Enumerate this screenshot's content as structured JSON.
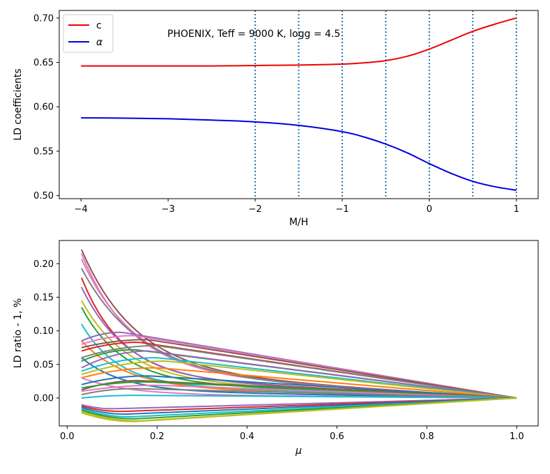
{
  "chart_data": [
    {
      "type": "line",
      "annotation": "PHOENIX, Teff = 9000 K, logg = 4.5",
      "xlabel": "M/H",
      "ylabel": "LD coefficients",
      "xlim": [
        -4.25,
        1.25
      ],
      "ylim": [
        0.4965,
        0.7085
      ],
      "xticks": [
        -4,
        -3,
        -2,
        -1,
        0,
        1
      ],
      "xtick_labels": [
        "−4",
        "−3",
        "−2",
        "−1",
        "0",
        "1"
      ],
      "yticks": [
        0.5,
        0.55,
        0.6,
        0.65,
        0.7
      ],
      "ytick_labels": [
        "0.50",
        "0.55",
        "0.60",
        "0.65",
        "0.70"
      ],
      "vlines": [
        -2.0,
        -1.5,
        -1.0,
        -0.5,
        0.0,
        0.5,
        1.0
      ],
      "vline_color": "#1f77b4",
      "legend_position": "upper-left",
      "series": [
        {
          "name": "c",
          "color": "#ee0000",
          "x": [
            -4,
            -3.5,
            -3,
            -2.5,
            -2,
            -1.5,
            -1,
            -0.75,
            -0.5,
            -0.25,
            0,
            0.25,
            0.5,
            0.75,
            1
          ],
          "y": [
            0.646,
            0.646,
            0.646,
            0.646,
            0.6465,
            0.647,
            0.648,
            0.6495,
            0.652,
            0.657,
            0.665,
            0.675,
            0.685,
            0.693,
            0.7
          ]
        },
        {
          "name": "α",
          "color": "#0000dd",
          "x": [
            -4,
            -3.5,
            -3,
            -2.5,
            -2,
            -1.5,
            -1,
            -0.75,
            -0.5,
            -0.25,
            0,
            0.25,
            0.5,
            0.75,
            1
          ],
          "y": [
            0.5875,
            0.5872,
            0.5865,
            0.585,
            0.583,
            0.579,
            0.572,
            0.566,
            0.558,
            0.548,
            0.536,
            0.525,
            0.516,
            0.51,
            0.506
          ]
        }
      ]
    },
    {
      "type": "line",
      "xlabel": "μ",
      "ylabel": "LD ratio - 1, %",
      "xlim": [
        -0.0175,
        1.0475
      ],
      "ylim": [
        -0.0415,
        0.2345
      ],
      "xticks": [
        0.0,
        0.2,
        0.4,
        0.6,
        0.8,
        1.0
      ],
      "xtick_labels": [
        "0.0",
        "0.2",
        "0.4",
        "0.6",
        "0.8",
        "1.0"
      ],
      "yticks": [
        0.0,
        0.05,
        0.1,
        0.15,
        0.2
      ],
      "ytick_labels": [
        "0.00",
        "0.05",
        "0.10",
        "0.15",
        "0.20"
      ],
      "x_start": 0.032,
      "x_end": 1.0,
      "series_shape": "curves; decaying curves use decay, humped curves use peak_mu",
      "series": [
        {
          "start": 0.221,
          "decay": 0.12,
          "color": "#8c564b"
        },
        {
          "start": 0.215,
          "decay": 0.11,
          "color": "#e377c2"
        },
        {
          "start": 0.207,
          "decay": 0.12,
          "color": "#e377c2"
        },
        {
          "start": 0.193,
          "decay": 0.13,
          "color": "#7f7f7f"
        },
        {
          "start": 0.179,
          "decay": 0.09,
          "color": "#d62728"
        },
        {
          "start": 0.165,
          "decay": 0.1,
          "color": "#9467bd"
        },
        {
          "start": 0.145,
          "decay": 0.1,
          "color": "#bcbd22"
        },
        {
          "start": 0.135,
          "decay": 0.09,
          "color": "#2ca02c"
        },
        {
          "start": 0.11,
          "decay": 0.08,
          "color": "#17becf"
        },
        {
          "start": 0.085,
          "decay": 0.1,
          "color": "#ff7f0e"
        },
        {
          "start": 0.06,
          "decay": 0.09,
          "color": "#1f77b4"
        },
        {
          "start": 0.03,
          "decay": 0.1,
          "color": "#e377c2"
        },
        {
          "start": 0.085,
          "peak": 0.098,
          "peak_mu": 0.12,
          "color": "#9467bd"
        },
        {
          "start": 0.08,
          "peak": 0.093,
          "peak_mu": 0.15,
          "color": "#e377c2"
        },
        {
          "start": 0.075,
          "peak": 0.087,
          "peak_mu": 0.18,
          "color": "#8c564b"
        },
        {
          "start": 0.07,
          "peak": 0.083,
          "peak_mu": 0.16,
          "color": "#d62728"
        },
        {
          "start": 0.06,
          "peak": 0.078,
          "peak_mu": 0.2,
          "color": "#7f7f7f"
        },
        {
          "start": 0.055,
          "peak": 0.072,
          "peak_mu": 0.15,
          "color": "#2ca02c"
        },
        {
          "start": 0.045,
          "peak": 0.07,
          "peak_mu": 0.18,
          "color": "#9467bd"
        },
        {
          "start": 0.04,
          "peak": 0.06,
          "peak_mu": 0.2,
          "color": "#17becf"
        },
        {
          "start": 0.035,
          "peak": 0.055,
          "peak_mu": 0.22,
          "color": "#bcbd22"
        },
        {
          "start": 0.03,
          "peak": 0.045,
          "peak_mu": 0.2,
          "color": "#ff7f0e"
        },
        {
          "start": 0.02,
          "peak": 0.033,
          "peak_mu": 0.18,
          "color": "#1f77b4"
        },
        {
          "start": 0.012,
          "peak": 0.026,
          "peak_mu": 0.16,
          "color": "#8c564b"
        },
        {
          "start": 0.015,
          "peak": 0.024,
          "peak_mu": 0.18,
          "color": "#2ca02c"
        },
        {
          "start": 0.01,
          "peak": 0.019,
          "peak_mu": 0.2,
          "color": "#e377c2"
        },
        {
          "start": 0.005,
          "peak": 0.014,
          "peak_mu": 0.15,
          "color": "#7f7f7f"
        },
        {
          "start": 0.0,
          "peak": 0.004,
          "peak_mu": 0.15,
          "color": "#17becf"
        },
        {
          "start": -0.01,
          "peak": -0.016,
          "peak_mu": 0.1,
          "color": "#9467bd"
        },
        {
          "start": -0.012,
          "peak": -0.02,
          "peak_mu": 0.12,
          "color": "#d62728"
        },
        {
          "start": -0.014,
          "peak": -0.024,
          "peak_mu": 0.13,
          "color": "#1f77b4"
        },
        {
          "start": -0.016,
          "peak": -0.028,
          "peak_mu": 0.14,
          "color": "#17becf"
        },
        {
          "start": -0.018,
          "peak": -0.031,
          "peak_mu": 0.15,
          "color": "#2ca02c"
        },
        {
          "start": -0.02,
          "peak": -0.034,
          "peak_mu": 0.16,
          "color": "#bcbd22"
        },
        {
          "start": -0.022,
          "peak": -0.035,
          "peak_mu": 0.15,
          "color": "#bcbd22"
        }
      ]
    }
  ]
}
